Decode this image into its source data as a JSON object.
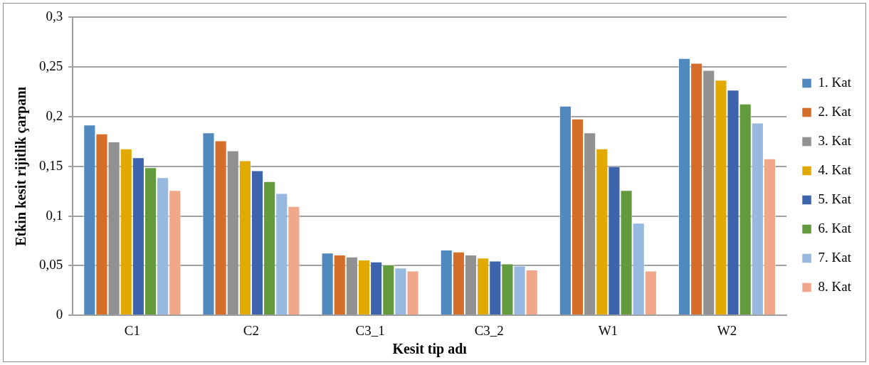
{
  "chart_data": {
    "type": "bar",
    "xlabel": "Kesit tip adı",
    "ylabel": "Etkin kesit rijitlik çarpanı",
    "categories": [
      "C1",
      "C2",
      "C3_1",
      "C3_2",
      "W1",
      "W2"
    ],
    "series": [
      {
        "name": "1. Kat",
        "color": "#4f89bd",
        "values": [
          0.192,
          0.184,
          0.063,
          0.066,
          0.211,
          0.259
        ]
      },
      {
        "name": "2. Kat",
        "color": "#d46e2a",
        "values": [
          0.183,
          0.176,
          0.061,
          0.064,
          0.198,
          0.254
        ]
      },
      {
        "name": "3. Kat",
        "color": "#919191",
        "values": [
          0.175,
          0.166,
          0.059,
          0.061,
          0.184,
          0.247
        ]
      },
      {
        "name": "4. Kat",
        "color": "#e2aa00",
        "values": [
          0.168,
          0.156,
          0.056,
          0.058,
          0.168,
          0.237
        ]
      },
      {
        "name": "5. Kat",
        "color": "#3d64ad",
        "values": [
          0.159,
          0.146,
          0.054,
          0.055,
          0.15,
          0.227
        ]
      },
      {
        "name": "6. Kat",
        "color": "#639a3d",
        "values": [
          0.149,
          0.135,
          0.051,
          0.052,
          0.126,
          0.213
        ]
      },
      {
        "name": "7. Kat",
        "color": "#97b8df",
        "values": [
          0.139,
          0.123,
          0.048,
          0.05,
          0.093,
          0.194
        ]
      },
      {
        "name": "8. Kat",
        "color": "#f0a78a",
        "values": [
          0.126,
          0.11,
          0.045,
          0.046,
          0.045,
          0.158
        ]
      }
    ],
    "ylim": [
      0,
      0.3
    ],
    "yticks": [
      {
        "value": 0,
        "label": "0"
      },
      {
        "value": 0.05,
        "label": "0,05"
      },
      {
        "value": 0.1,
        "label": "0,1"
      },
      {
        "value": 0.15,
        "label": "0,15"
      },
      {
        "value": 0.2,
        "label": "0,2"
      },
      {
        "value": 0.25,
        "label": "0,25"
      },
      {
        "value": 0.3,
        "label": "0,3"
      }
    ],
    "grid": "y",
    "legend": "right"
  }
}
